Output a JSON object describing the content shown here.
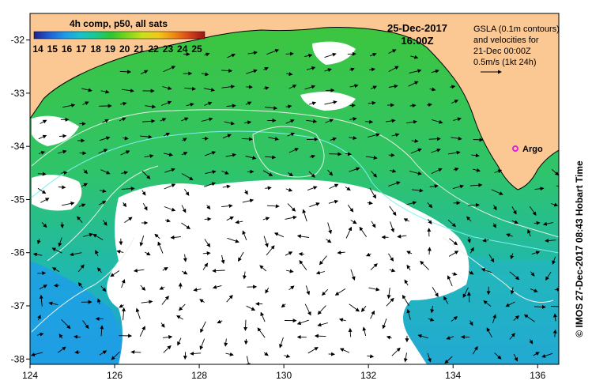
{
  "header": {
    "date": "25-Dec-2017",
    "time": "16:00Z"
  },
  "colorbar": {
    "title": "4h comp, p50, all sats",
    "ticks": [
      "14",
      "15",
      "16",
      "17",
      "18",
      "19",
      "20",
      "21",
      "22",
      "23",
      "24",
      "25"
    ],
    "colors": [
      "#20208a",
      "#1f5fd6",
      "#1e9be8",
      "#19c0cc",
      "#19c98a",
      "#2ec62e",
      "#7ed51c",
      "#c9e01a",
      "#f3c818",
      "#f08a14",
      "#d8421a",
      "#9a1414"
    ]
  },
  "legend": {
    "line1": "GSLA (0.1m contours)",
    "line2": "and velocities for",
    "line3": "21-Dec 00:00Z",
    "line4": "0.5m/s (1kt 24h)"
  },
  "argo": {
    "label": "Argo",
    "marker_color": "#e020e0"
  },
  "credit": "© IMOS 27-Dec-2017 08:43 Hobart Time",
  "axes": {
    "x": {
      "min": 124,
      "max": 136.5,
      "ticks": [
        124,
        126,
        128,
        130,
        132,
        134,
        136
      ]
    },
    "y": {
      "min": -38.1,
      "max": -31.5,
      "ticks": [
        -32,
        -33,
        -34,
        -35,
        -36,
        -37,
        -38
      ]
    }
  },
  "colors": {
    "land": "#fbc894",
    "cloud": "#ffffff",
    "ocean_warm": "#3cc43c",
    "ocean_mid": "#25c286",
    "ocean_cool": "#1ea2e0",
    "contour": "#e6f2e6",
    "contour_cyan": "#7ff0f0"
  }
}
